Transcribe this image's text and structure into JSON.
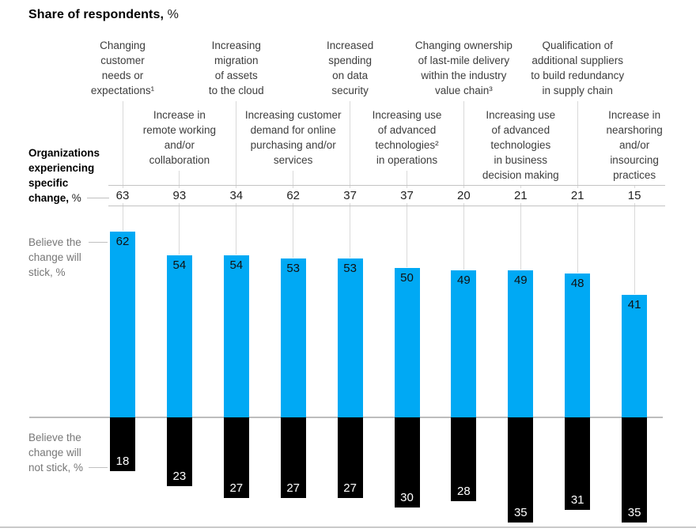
{
  "title": {
    "main": "Share of respondents,",
    "suffix": " %"
  },
  "rows": {
    "experiencing": {
      "label": "Organizations\nexperiencing\nspecific\nchange,",
      "suffix": " %"
    },
    "stick": {
      "label": "Believe the\nchange will\nstick, %"
    },
    "not_stick": {
      "label": "Believe the\nchange will\nnot stick, %"
    }
  },
  "colors": {
    "bar_up": "#00a9f4",
    "bar_down": "#000000",
    "gridline": "#d9d9d9",
    "rule": "#c3c3c3"
  },
  "chart_data": {
    "type": "bar",
    "title": "Share of respondents, %",
    "categories": [
      "Changing\ncustomer\nneeds or\nexpectations¹",
      "Increase in\nremote working\nand/or\ncollaboration",
      "Increasing\nmigration\nof assets\nto the cloud",
      "Increasing customer\ndemand for online\npurchasing and/or\nservices",
      "Increased\nspending\non data\nsecurity",
      "Increasing use\nof advanced\ntechnologies²\nin operations",
      "Changing ownership\nof last-mile delivery\nwithin the industry\nvalue chain³",
      "Increasing use\nof advanced\ntechnologies\nin business\ndecision making",
      "Qualification of\nadditional suppliers\nto build redundancy\nin supply chain",
      "Increase in\nnearshoring\nand/or\ninsourcing\npractices"
    ],
    "series": [
      {
        "name": "Organizations experiencing specific change, %",
        "values": [
          63,
          93,
          34,
          62,
          37,
          37,
          20,
          21,
          21,
          15
        ]
      },
      {
        "name": "Believe the change will stick, %",
        "values": [
          62,
          54,
          54,
          53,
          53,
          50,
          49,
          49,
          48,
          41
        ],
        "color": "#00a9f4"
      },
      {
        "name": "Believe the change will not stick, %",
        "values": [
          18,
          23,
          27,
          27,
          27,
          30,
          28,
          35,
          31,
          35
        ],
        "color": "#000000"
      }
    ],
    "xlabel": "",
    "ylabel": "",
    "ylim": [
      -35,
      62
    ],
    "grid": "vertical guide lines per category",
    "legend_position": "left captions",
    "layout_hint": "diverging column chart: blue bars rise from zero baseline, black bars hang below; first series shown as a number row under staggered category labels"
  }
}
